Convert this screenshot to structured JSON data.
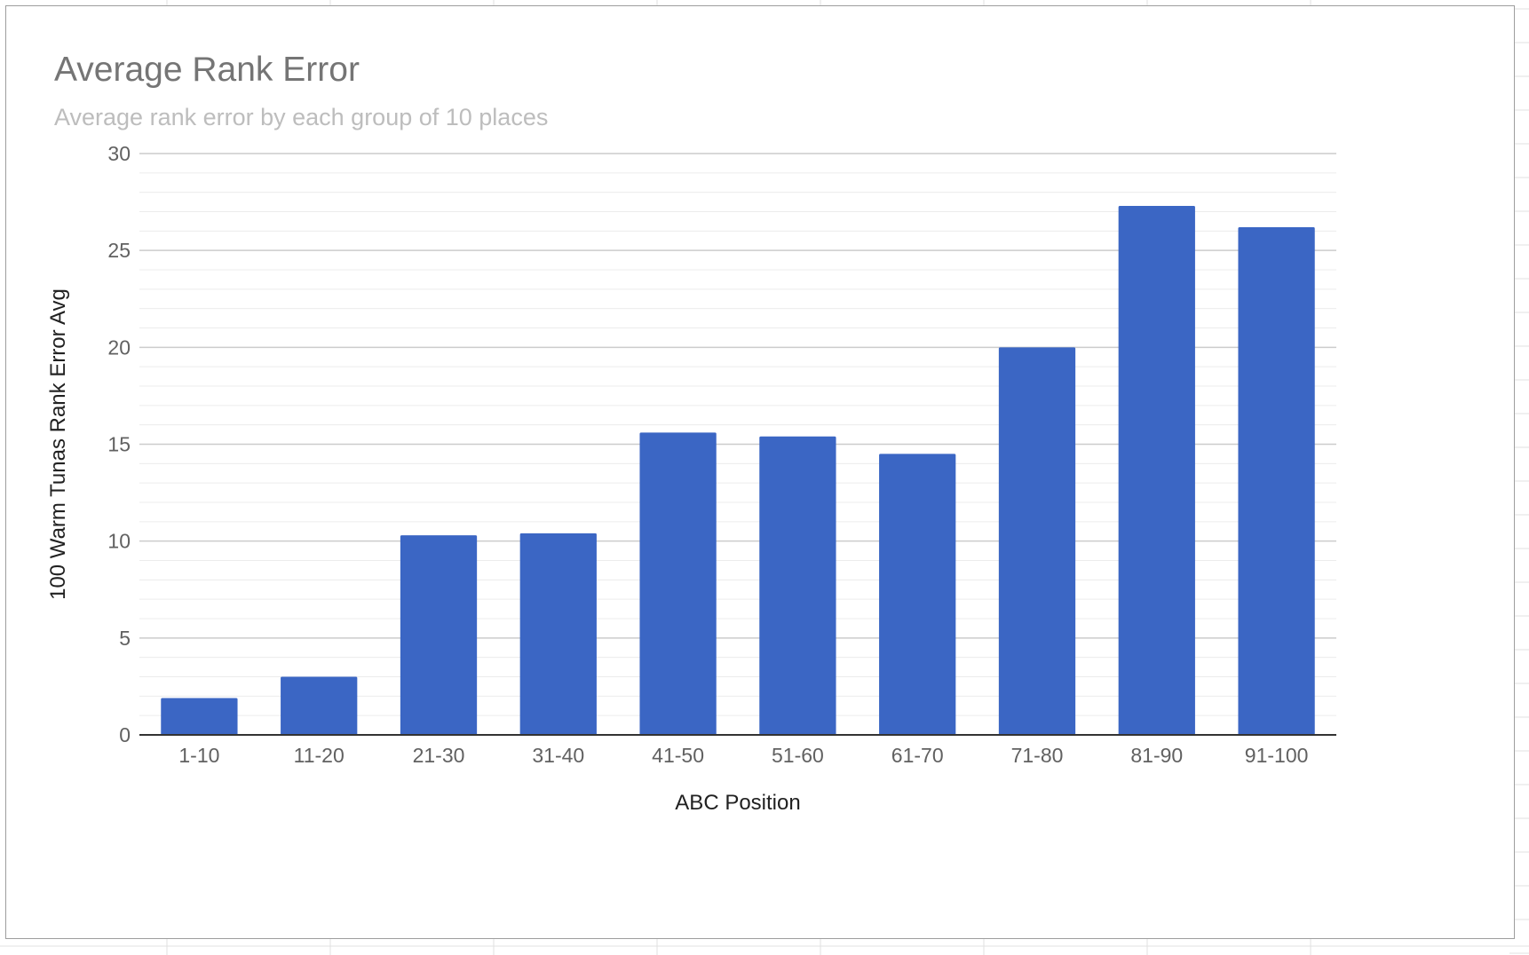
{
  "chart_data": {
    "type": "bar",
    "title": "Average Rank Error",
    "subtitle": "Average rank error by each group of 10 places",
    "xlabel": "ABC Position",
    "ylabel": "100 Warm Tunas Rank Error Avg",
    "categories": [
      "1-10",
      "11-20",
      "21-30",
      "31-40",
      "41-50",
      "51-60",
      "61-70",
      "71-80",
      "81-90",
      "91-100"
    ],
    "values": [
      1.9,
      3.0,
      10.3,
      10.4,
      15.6,
      15.4,
      14.5,
      20.0,
      27.3,
      26.2
    ],
    "ylim": [
      0,
      30
    ],
    "yticks": [
      0,
      5,
      10,
      15,
      20,
      25,
      30
    ],
    "grid": true,
    "minor_gridlines_per_major": 5,
    "legend": "none",
    "bar_color": "#3b66c4"
  }
}
